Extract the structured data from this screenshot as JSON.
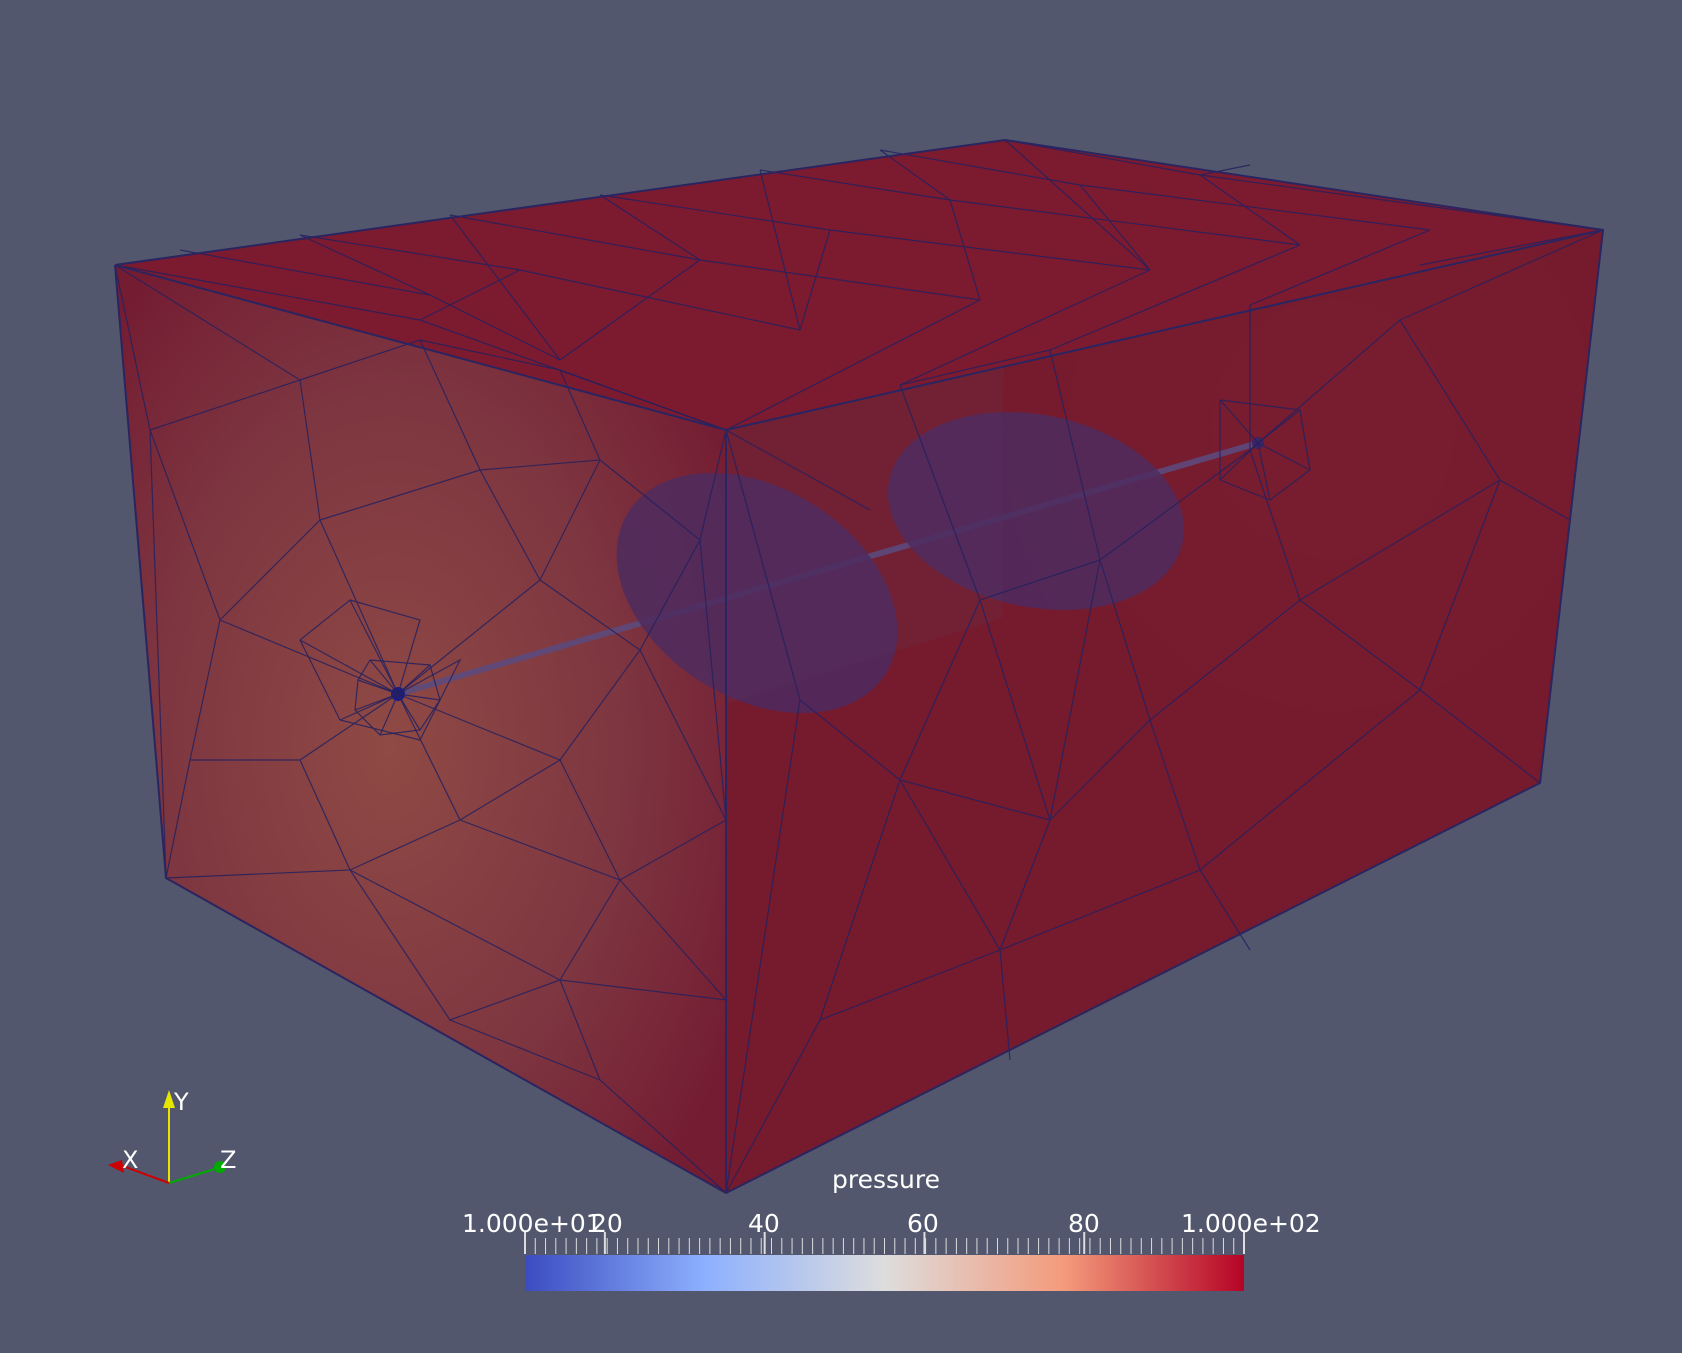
{
  "scene": {
    "background": "#52576d",
    "object_color": "#7a1a30",
    "mesh_color": "#1e1f6b",
    "inclusion_color": "#4b2a5e"
  },
  "colorbar": {
    "title": "pressure",
    "labels": [
      "1.000e+01",
      "20",
      "40",
      "60",
      "80",
      "1.000e+02"
    ],
    "range": [
      10,
      100
    ],
    "colormap": "Cool to Warm",
    "colors": [
      "#3b4cc0",
      "#8db0fe",
      "#dddddd",
      "#f49a7b",
      "#b40426"
    ]
  },
  "orientation_axes": {
    "x_label": "X",
    "y_label": "Y",
    "z_label": "Z",
    "x_color": "#cc0000",
    "y_color": "#e6e600",
    "z_color": "#00aa00"
  }
}
